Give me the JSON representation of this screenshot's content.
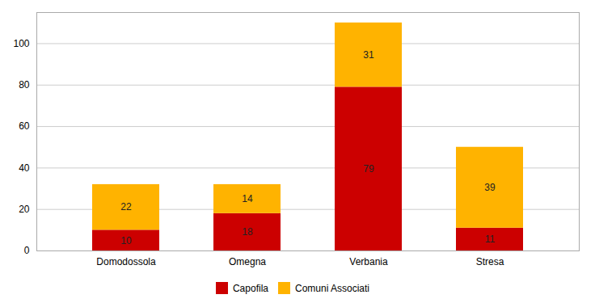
{
  "chart_data": {
    "type": "bar",
    "stacked": true,
    "categories": [
      "Domodossola",
      "Omegna",
      "Verbania",
      "Stresa"
    ],
    "series": [
      {
        "name": "Capofila",
        "color": "#CC0000",
        "values": [
          10,
          18,
          79,
          11
        ]
      },
      {
        "name": "Comuni Associati",
        "color": "#FFB300",
        "values": [
          22,
          14,
          31,
          39
        ]
      }
    ],
    "ylim": [
      0,
      115
    ],
    "yticks": [
      0,
      20,
      40,
      60,
      80,
      100
    ],
    "grid": true,
    "data_labels": true,
    "legend": "bottom"
  }
}
